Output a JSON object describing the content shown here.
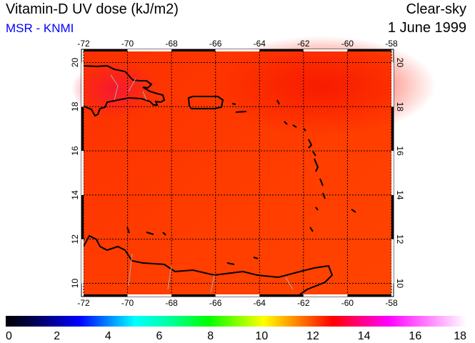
{
  "header": {
    "title": "Vitamin-D UV dose (kJ/m2)",
    "subtitle": "MSR - KNMI",
    "condition": "Clear-sky",
    "date": "1 June 1999"
  },
  "colors": {
    "subtitle": "#0000ff",
    "field_main": "#ff3a00",
    "field_high": "#f81828"
  },
  "map": {
    "lon_ticks": [
      "-72",
      "-70",
      "-68",
      "-66",
      "-64",
      "-62",
      "-60",
      "-58"
    ],
    "lat_ticks": [
      "10",
      "12",
      "14",
      "16",
      "18",
      "20"
    ],
    "lon_range": [
      -72,
      -58
    ],
    "lat_range": [
      9.5,
      20.5
    ]
  },
  "colorbar": {
    "labels": [
      "0",
      "2",
      "4",
      "6",
      "8",
      "10",
      "12",
      "14",
      "16",
      "18"
    ],
    "range": [
      0,
      18
    ]
  }
}
